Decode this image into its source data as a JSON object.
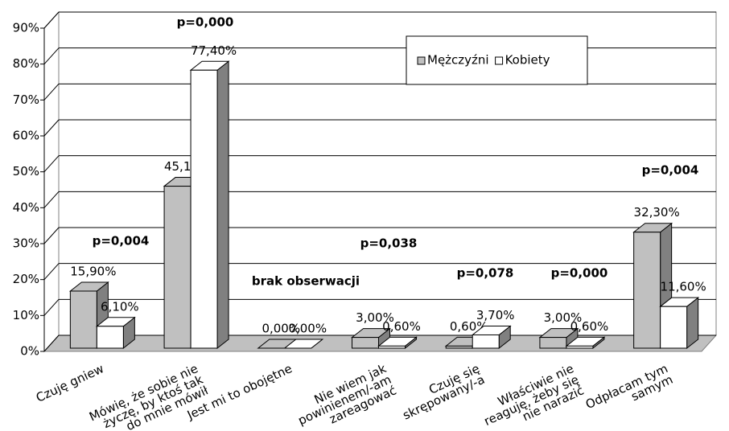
{
  "chart_data": {
    "type": "bar3d",
    "categories": [
      "Czuję gniew",
      "Mówię, że sobie nie życzę, by ktoś tak do mnie mówił",
      "Jest mi to obojętne",
      "Nie wiem jak powinienem/-am zareagować",
      "Czuję się skrępowany/-a",
      "Właściwie nie reaguję, żeby się nie narazić",
      "Odpłacam tym samym"
    ],
    "series": [
      {
        "name": "Mężczyźni",
        "color": "#c0c0c0",
        "values": [
          15.9,
          45.1,
          0,
          3.0,
          0.6,
          3.0,
          32.3
        ],
        "value_labels": [
          "15,90%",
          "45,10%",
          "0,00%",
          "3,00%",
          "0,60%",
          "3,00%",
          "32,30%"
        ]
      },
      {
        "name": "Kobiety",
        "color": "#ffffff",
        "values": [
          6.1,
          77.4,
          0,
          0.6,
          3.7,
          0.6,
          11.6
        ],
        "value_labels": [
          "6,10%",
          "77,40%",
          "0,00%",
          "0,60%",
          "3,70%",
          "0,60%",
          "11,60%"
        ]
      }
    ],
    "annotations": [
      "p=0,004",
      "p=0,000",
      "brak obserwacji",
      "p=0,038",
      "p=0,078",
      "p=0,000",
      "p=0,004"
    ],
    "ylim": [
      0,
      90
    ],
    "yticks": [
      {
        "value": 0,
        "label": "0%"
      },
      {
        "value": 10,
        "label": "10%"
      },
      {
        "value": 20,
        "label": "20%"
      },
      {
        "value": 30,
        "label": "30%"
      },
      {
        "value": 40,
        "label": "40%"
      },
      {
        "value": 50,
        "label": "50%"
      },
      {
        "value": 60,
        "label": "60%"
      },
      {
        "value": 70,
        "label": "70%"
      },
      {
        "value": 80,
        "label": "80%"
      },
      {
        "value": 90,
        "label": "90%"
      }
    ],
    "grid": true,
    "legend": "top-right"
  }
}
